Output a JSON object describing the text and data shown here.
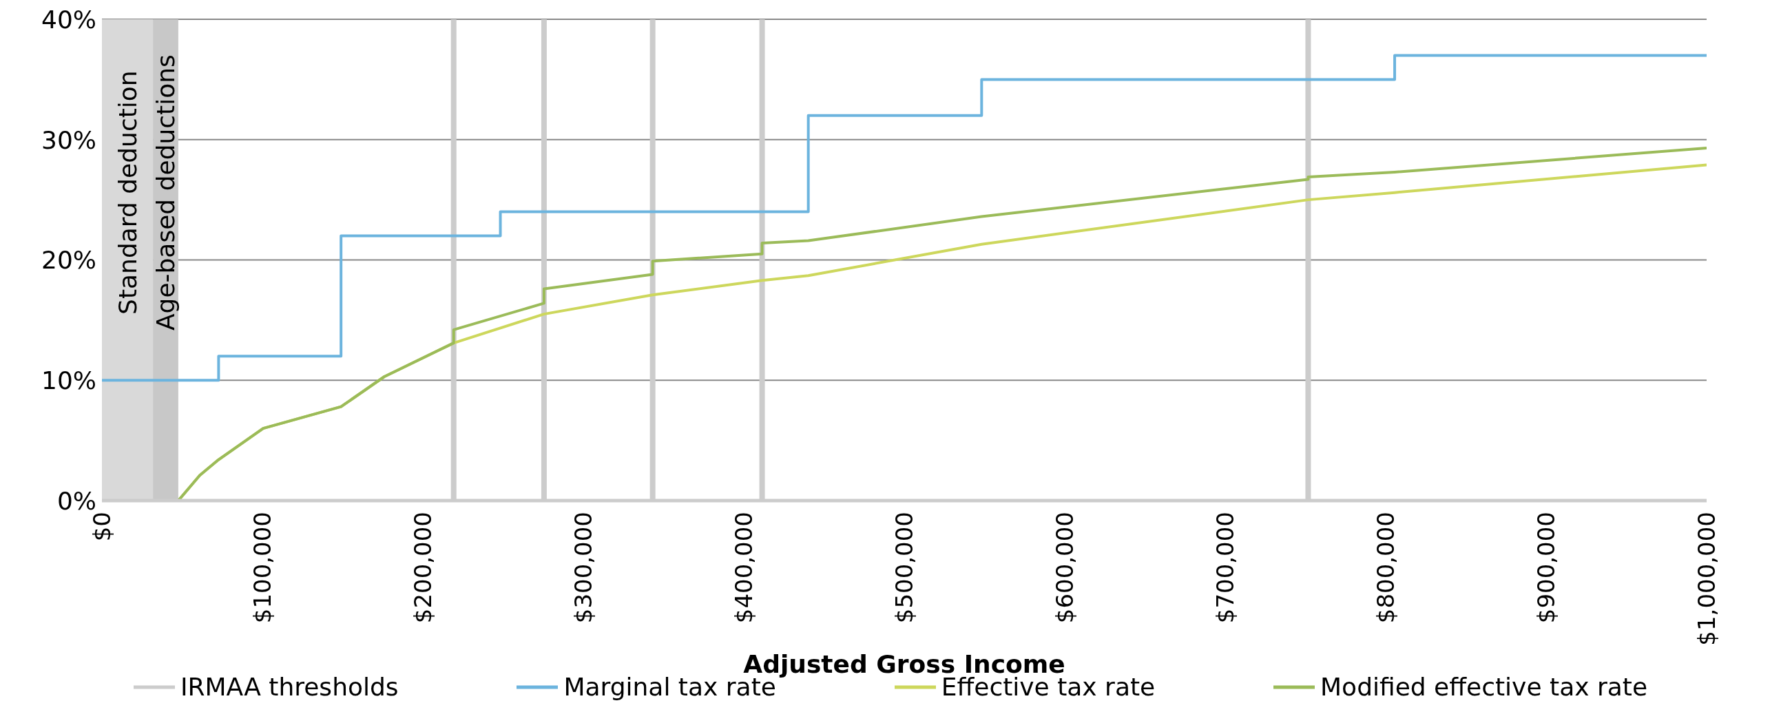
{
  "chart_data": {
    "type": "line",
    "xlabel": "Adjusted Gross Income",
    "xlim": [
      0,
      1000000
    ],
    "xticks": [
      {
        "value": 0,
        "label": "$0"
      },
      {
        "value": 100000,
        "label": "$100,000"
      },
      {
        "value": 200000,
        "label": "$200,000"
      },
      {
        "value": 300000,
        "label": "$300,000"
      },
      {
        "value": 400000,
        "label": "$400,000"
      },
      {
        "value": 500000,
        "label": "$500,000"
      },
      {
        "value": 600000,
        "label": "$600,000"
      },
      {
        "value": 700000,
        "label": "$700,000"
      },
      {
        "value": 800000,
        "label": "$800,000"
      },
      {
        "value": 900000,
        "label": "$900,000"
      },
      {
        "value": 1000000,
        "label": "$1,000,000"
      }
    ],
    "ylim": [
      0,
      40
    ],
    "yticks": [
      {
        "value": 0,
        "label": "0%"
      },
      {
        "value": 10,
        "label": "10%"
      },
      {
        "value": 20,
        "label": "20%"
      },
      {
        "value": 30,
        "label": "30%"
      },
      {
        "value": 40,
        "label": "40%"
      }
    ],
    "grid": "y",
    "legend": "bottom",
    "marker": "none",
    "line_style": "solid",
    "bands": [
      {
        "axis": "x",
        "from": 0,
        "to": 31800,
        "label": "Standard deduction",
        "color": "#d9d9d9"
      },
      {
        "axis": "x",
        "from": 31800,
        "to": 47600,
        "label": "Age-based deductions",
        "color": "#c8c8c8"
      }
    ],
    "ref_lines": [
      {
        "axis": "x",
        "value": 219200,
        "label": "IRMAA thresholds",
        "color": "#cccccc"
      },
      {
        "axis": "x",
        "value": 275500,
        "color": "#cccccc"
      },
      {
        "axis": "x",
        "value": 343200,
        "color": "#cccccc"
      },
      {
        "axis": "x",
        "value": 411400,
        "color": "#cccccc"
      },
      {
        "axis": "x",
        "value": 751700,
        "color": "#cccccc"
      }
    ],
    "series": [
      {
        "name": "Marginal tax rate",
        "type": "step",
        "color": "#6cb4de",
        "x": [
          0,
          72700,
          149000,
          248300,
          440200,
          548200,
          805600,
          1000000
        ],
        "values": [
          10,
          12,
          22,
          24,
          32,
          35,
          37,
          37
        ]
      },
      {
        "name": "Effective tax rate",
        "color": "#cdd75c",
        "x": [
          0,
          47600,
          61000,
          72700,
          100500,
          149000,
          176000,
          219200,
          275500,
          343200,
          411400,
          440200,
          548200,
          751700,
          805600,
          1000000
        ],
        "values": [
          0,
          0,
          2.1,
          3.4,
          6.0,
          7.8,
          10.3,
          13.1,
          15.5,
          17.1,
          18.3,
          18.7,
          21.3,
          25.0,
          25.6,
          27.9
        ]
      },
      {
        "name": "Modified effective tax rate",
        "color": "#9bbb59",
        "x": [
          0,
          47600,
          61000,
          72700,
          100500,
          149000,
          176000,
          219200,
          219200,
          275500,
          275500,
          343200,
          343200,
          411400,
          411400,
          440200,
          548200,
          751700,
          751700,
          805600,
          1000000
        ],
        "values": [
          0,
          0,
          2.1,
          3.4,
          6.0,
          7.8,
          10.3,
          13.1,
          14.2,
          16.4,
          17.6,
          18.8,
          19.9,
          20.5,
          21.4,
          21.6,
          23.6,
          26.7,
          26.9,
          27.3,
          29.3
        ]
      }
    ]
  }
}
